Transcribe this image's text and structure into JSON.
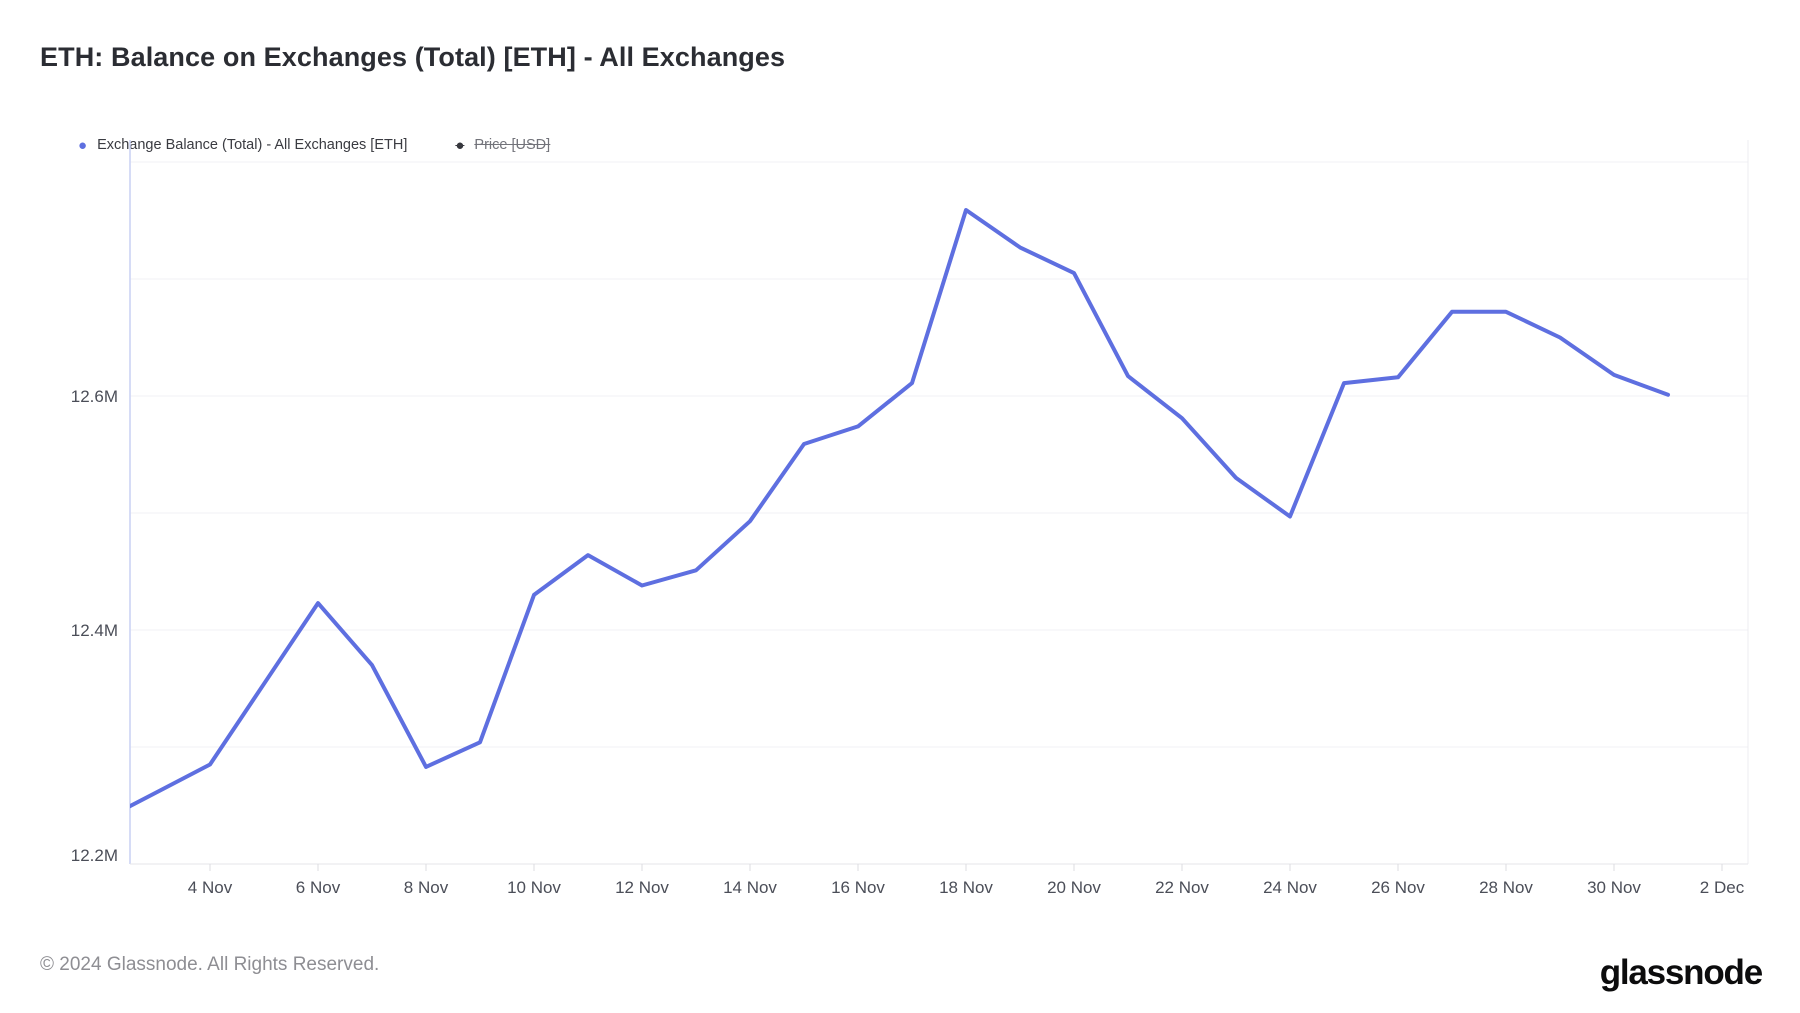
{
  "header": {
    "title": "ETH: Balance on Exchanges (Total) [ETH] - All Exchanges"
  },
  "legend": {
    "items": [
      {
        "label": "Exchange Balance (Total) - All Exchanges [ETH]",
        "color": "#5E6FE0",
        "enabled": true
      },
      {
        "label": "Price [USD]",
        "color": "#35363C",
        "enabled": false
      }
    ]
  },
  "footer": {
    "copyright": "© 2024 Glassnode. All Rights Reserved.",
    "brand": "glassnode"
  },
  "colors": {
    "series_line": "#5E6FE0",
    "grid_line": "#f2f2f5",
    "x_axis_line": "#e6e6ea",
    "y_axis_line": "#c9d1f4",
    "right_axis_line": "#ececf0",
    "tick_mark": "#dcdce0",
    "tick_label": "#4b4e58"
  },
  "chart_data": {
    "type": "line",
    "title": "ETH: Balance on Exchanges (Total) [ETH] - All Exchanges",
    "xlabel": "",
    "ylabel": "",
    "unit": "ETH, millions",
    "grid": "horizontal gridlines every 0.1M, left axis line, bottom axis line",
    "legend_position": "top-left",
    "ylim_M": [
      12.2,
      12.82
    ],
    "y_tick_labels": [
      {
        "label": "12.2M",
        "value": 12.2
      },
      {
        "label": "12.4M",
        "value": 12.4
      },
      {
        "label": "12.6M",
        "value": 12.6
      }
    ],
    "y_gridline_values": [
      12.3,
      12.4,
      12.5,
      12.6,
      12.7,
      12.8
    ],
    "x_tick_labels": [
      "4 Nov",
      "6 Nov",
      "8 Nov",
      "10 Nov",
      "12 Nov",
      "14 Nov",
      "16 Nov",
      "18 Nov",
      "20 Nov",
      "22 Nov",
      "24 Nov",
      "26 Nov",
      "28 Nov",
      "30 Nov",
      "2 Dec"
    ],
    "hidden_series": [
      "Price [USD]"
    ],
    "series": [
      {
        "name": "Exchange Balance (Total) - All Exchanges [ETH]",
        "color": "#5E6FE0",
        "dates": [
          "2 Nov",
          "3 Nov",
          "4 Nov",
          "5 Nov",
          "6 Nov",
          "7 Nov",
          "8 Nov",
          "9 Nov",
          "10 Nov",
          "11 Nov",
          "12 Nov",
          "13 Nov",
          "14 Nov",
          "15 Nov",
          "16 Nov",
          "17 Nov",
          "18 Nov",
          "19 Nov",
          "20 Nov",
          "21 Nov",
          "22 Nov",
          "23 Nov",
          "24 Nov",
          "25 Nov",
          "26 Nov",
          "27 Nov",
          "28 Nov",
          "29 Nov",
          "30 Nov",
          "1 Dec"
        ],
        "values_M": [
          12.237,
          12.261,
          12.285,
          12.354,
          12.423,
          12.37,
          12.283,
          12.304,
          12.43,
          12.464,
          12.438,
          12.451,
          12.493,
          12.559,
          12.574,
          12.611,
          12.759,
          12.727,
          12.705,
          12.617,
          12.581,
          12.53,
          12.497,
          12.611,
          12.616,
          12.672,
          12.672,
          12.65,
          12.618,
          12.601
        ]
      }
    ]
  }
}
